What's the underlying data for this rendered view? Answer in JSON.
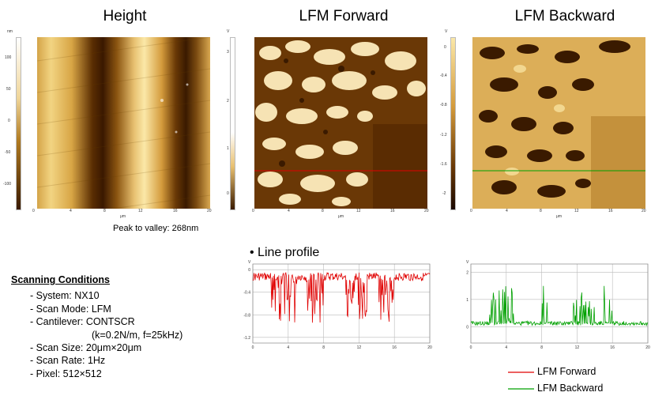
{
  "panels": {
    "height": {
      "title": "Height",
      "cbar_unit": "nm",
      "cbar_ticks": [
        "100",
        "50",
        "0",
        "-50",
        "-100"
      ]
    },
    "fwd": {
      "title": "LFM Forward",
      "cbar_unit": "V",
      "cbar_ticks": [
        "3",
        "2",
        "1",
        "0"
      ]
    },
    "bwd": {
      "title": "LFM Backward",
      "cbar_unit": "V",
      "cbar_ticks": [
        "0",
        "-0.4",
        "-0.8",
        "-1.2",
        "-1.6",
        "-2"
      ]
    }
  },
  "axis": {
    "unit": "μm",
    "ticks": [
      "0",
      "4",
      "8",
      "12",
      "16",
      "20"
    ]
  },
  "peak_to_valley": "Peak to valley: 268nm",
  "line_profile_label": "• Line profile",
  "conditions": {
    "title": "Scanning Conditions",
    "lines": [
      "- System: NX10",
      "- Scan Mode: LFM",
      "- Cantilever: CONTSCR",
      "(k=0.2N/m, f=25kHz)",
      "- Scan Size: 20μm×20μm",
      "- Scan Rate: 1Hz",
      "- Pixel: 512×512"
    ]
  },
  "legend": {
    "forward": "LFM Forward",
    "backward": "LFM Backward"
  },
  "colors": {
    "forward": "#e00000",
    "backward": "#00a000"
  },
  "chart_data": [
    {
      "type": "line",
      "series": [
        {
          "name": "LFM Forward",
          "color": "#e00000"
        }
      ],
      "xlabel": "μm",
      "ylabel": "V",
      "x_ticks": [
        "0",
        "4",
        "8",
        "12",
        "16",
        "20"
      ],
      "y_ticks": [
        "0",
        "-0.4",
        "-0.8",
        "-1.2"
      ],
      "xlim": [
        0,
        20
      ],
      "ylim": [
        -1.3,
        0.1
      ],
      "grid": true
    },
    {
      "type": "line",
      "series": [
        {
          "name": "LFM Backward",
          "color": "#00a000"
        }
      ],
      "xlabel": "μm",
      "ylabel": "V",
      "x_ticks": [
        "0",
        "4",
        "8",
        "12",
        "16",
        "20"
      ],
      "y_ticks": [
        "2",
        "1",
        "0"
      ],
      "xlim": [
        0,
        20
      ],
      "ylim": [
        -0.6,
        2.3
      ],
      "grid": true
    }
  ]
}
